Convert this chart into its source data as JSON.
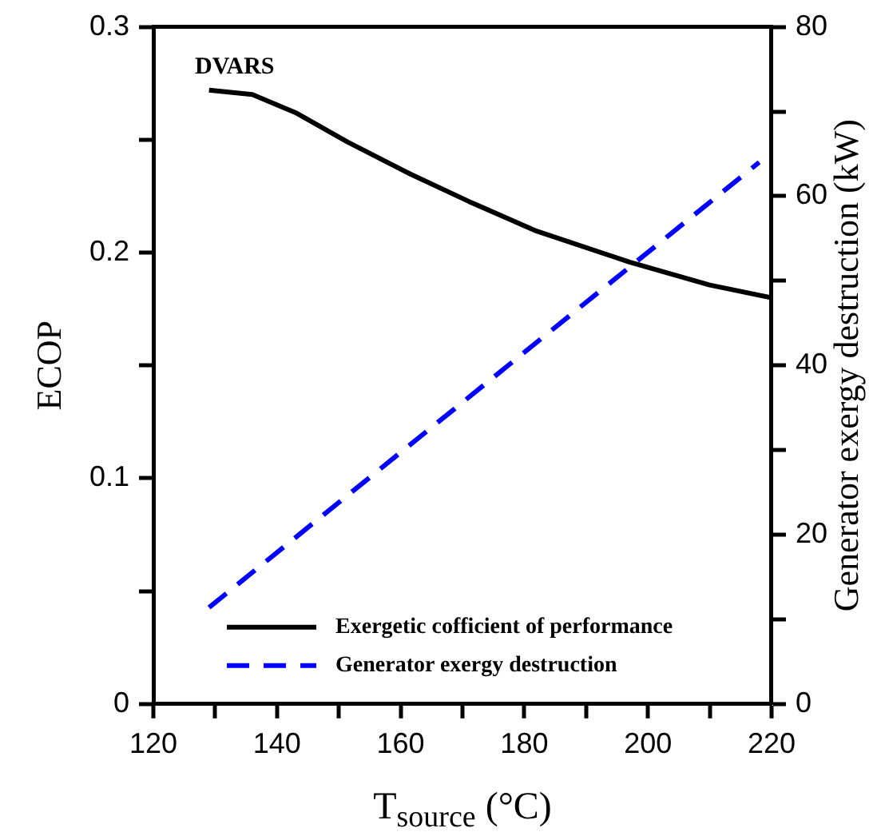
{
  "chart_data": {
    "type": "line",
    "xlabel": "T$_{source}$ (°C)",
    "ylabel": "ECOP",
    "y2label": "Generator exergy destruction (kW)",
    "annotations": [
      "DVARS"
    ],
    "xlim": [
      120,
      220
    ],
    "xticks": [
      120,
      {
        "value": 130,
        "label": null
      },
      140,
      {
        "value": 150,
        "label": null
      },
      160,
      {
        "value": 170,
        "label": null
      },
      180,
      {
        "value": 190,
        "label": null
      },
      200,
      {
        "value": 210,
        "label": null
      },
      220
    ],
    "ylim": [
      0,
      0.3
    ],
    "yticks": [
      0,
      {
        "value": 0.05,
        "label": null
      },
      0.1,
      {
        "value": 0.15,
        "label": null
      },
      0.2,
      {
        "value": 0.25,
        "label": null
      },
      0.3
    ],
    "y2lim": [
      0,
      80
    ],
    "y2ticks": [
      0,
      {
        "value": 10,
        "label": null
      },
      20,
      {
        "value": 30,
        "label": null
      },
      40,
      {
        "value": 50,
        "label": null
      },
      60,
      {
        "value": 70,
        "label": null
      },
      80
    ],
    "series": [
      {
        "name": "Exergetic cofficient of performance",
        "color": "#000000",
        "line_style": "solid",
        "x": [
          129,
          136,
          143,
          151.4,
          161.7,
          171,
          182,
          197,
          210,
          220
        ],
        "values": [
          0.272,
          0.27,
          0.262,
          0.249,
          0.2346,
          0.2227,
          0.2095,
          0.1958,
          0.1856,
          0.18
        ]
      },
      {
        "name": "Generator exergy destruction",
        "color": "#0000ff",
        "line_style": "dashed",
        "axis": "y2",
        "x": [
          129,
          218
        ],
        "values": [
          11.4,
          64
        ]
      }
    ],
    "legend": "bottom right",
    "grid": false,
    "marker": "none"
  }
}
